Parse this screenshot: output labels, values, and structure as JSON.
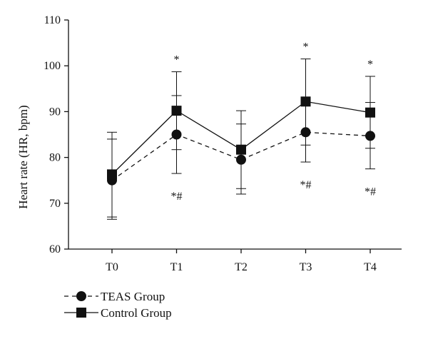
{
  "chart_data": {
    "type": "line",
    "title": "",
    "xlabel": "",
    "ylabel": "Heart rate (HR, bpm)",
    "ylim": [
      60,
      110
    ],
    "yticks": [
      60,
      70,
      80,
      90,
      100,
      110
    ],
    "categories": [
      "T0",
      "T1",
      "T2",
      "T3",
      "T4"
    ],
    "grid": false,
    "legend_position": "bottom-left",
    "series": [
      {
        "name": "TEAS Group",
        "marker": "circle",
        "line_style": "dashed",
        "color": "#111111",
        "values": [
          75.0,
          85.0,
          79.5,
          85.5,
          84.7
        ],
        "error_low": [
          66.5,
          76.5,
          72.0,
          79.0,
          77.5
        ],
        "error_high": [
          84.0,
          93.5,
          87.3,
          92.0,
          92.0
        ]
      },
      {
        "name": "Control Group",
        "marker": "square",
        "line_style": "solid",
        "color": "#111111",
        "values": [
          76.3,
          90.2,
          81.7,
          92.2,
          89.8
        ],
        "error_low": [
          67.0,
          81.7,
          73.2,
          82.7,
          82.0
        ],
        "error_high": [
          85.5,
          98.7,
          90.2,
          101.5,
          97.7
        ]
      }
    ],
    "annotations": [
      {
        "category": "T1",
        "y": 98.7,
        "text": "*",
        "position": "above"
      },
      {
        "category": "T1",
        "y": 76.5,
        "text": "*#",
        "position": "below"
      },
      {
        "category": "T3",
        "y": 101.5,
        "text": "*",
        "position": "above"
      },
      {
        "category": "T3",
        "y": 79.0,
        "text": "*#",
        "position": "below"
      },
      {
        "category": "T4",
        "y": 97.7,
        "text": "*",
        "position": "above"
      },
      {
        "category": "T4",
        "y": 77.5,
        "text": "*#",
        "position": "below"
      }
    ]
  }
}
